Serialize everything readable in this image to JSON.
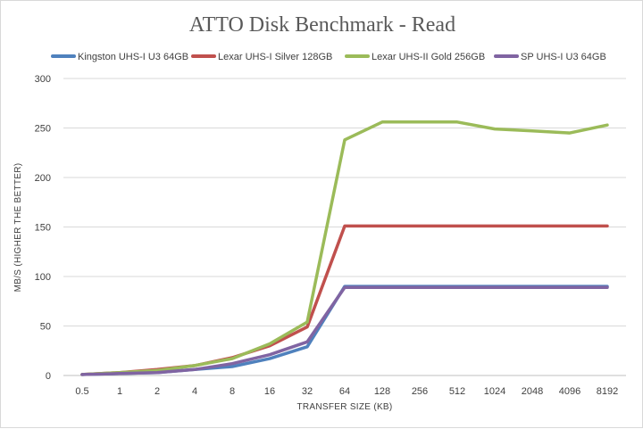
{
  "chart_data": {
    "type": "line",
    "title": "ATTO Disk Benchmark - Read",
    "xlabel": "TRANSFER SIZE (KB)",
    "ylabel": "MB/S (HIGHER THE BETTER)",
    "ylim": [
      0,
      300
    ],
    "yticks": [
      0,
      50,
      100,
      150,
      200,
      250,
      300
    ],
    "grid": true,
    "legend": "top",
    "categories": [
      "0.5",
      "1",
      "2",
      "4",
      "8",
      "16",
      "32",
      "64",
      "128",
      "256",
      "512",
      "1024",
      "2048",
      "4096",
      "8192"
    ],
    "series": [
      {
        "name": "Kingston UHS-I U3 64GB",
        "color": "#4f81bd",
        "values": [
          1,
          2,
          3,
          6,
          9,
          17,
          29,
          90,
          90,
          90,
          90,
          90,
          90,
          90,
          90
        ]
      },
      {
        "name": "Lexar UHS-I Silver 128GB",
        "color": "#c0504d",
        "values": [
          1,
          3,
          6,
          10,
          18,
          30,
          49,
          151,
          151,
          151,
          151,
          151,
          151,
          151,
          151
        ]
      },
      {
        "name": "Lexar UHS-II Gold 256GB",
        "color": "#9bbb59",
        "values": [
          1,
          3,
          5,
          10,
          17,
          32,
          54,
          238,
          256,
          256,
          256,
          249,
          247,
          245,
          253
        ]
      },
      {
        "name": "SP UHS-I U3 64GB",
        "color": "#8064a2",
        "values": [
          1,
          2,
          3,
          6,
          12,
          21,
          34,
          89,
          89,
          89,
          89,
          89,
          89,
          89,
          89
        ]
      }
    ]
  }
}
